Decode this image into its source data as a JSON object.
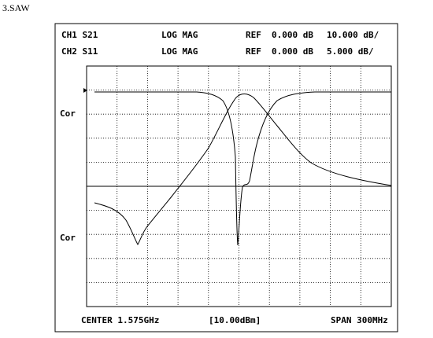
{
  "caption": "3.SAW",
  "header": {
    "rows": [
      [
        "CH1 S21",
        "LOG MAG",
        "REF",
        "0.000 dB",
        "10.000 dB/"
      ],
      [
        "CH2 S11",
        "LOG MAG",
        "REF",
        "0.000 dB",
        "5.000 dB/"
      ]
    ]
  },
  "side_labels": [
    "Cor",
    "Cor"
  ],
  "footer": {
    "center": "CENTER 1.575GHz",
    "power": "[10.00dBm]",
    "span": "SPAN 300MHz"
  }
}
